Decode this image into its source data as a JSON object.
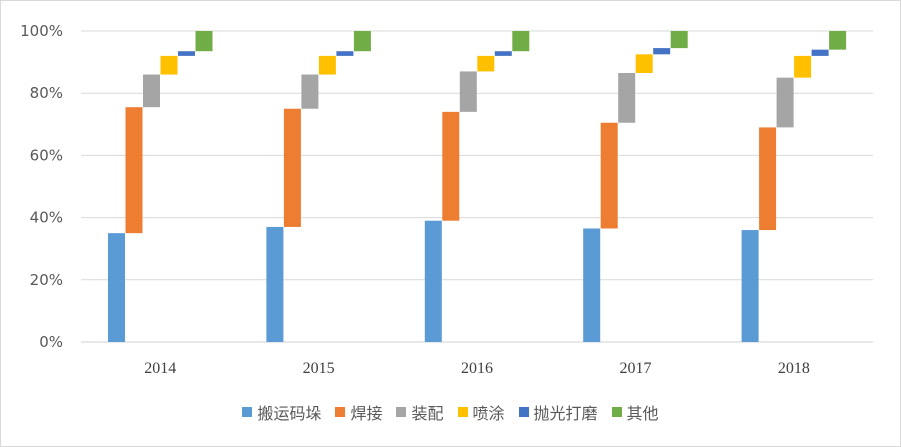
{
  "chart_data": {
    "type": "bar",
    "subtype": "stacked-waterfall",
    "title": "",
    "xlabel": "",
    "ylabel": "",
    "ylim": [
      0,
      100
    ],
    "yticks": [
      "0%",
      "20%",
      "40%",
      "60%",
      "80%",
      "100%"
    ],
    "categories": [
      "2014",
      "2015",
      "2016",
      "2017",
      "2018"
    ],
    "grid": true,
    "legend_position": "bottom",
    "series": [
      {
        "name": "搬运码垛",
        "color": "#5b9bd5",
        "values": [
          35,
          37,
          39,
          36.5,
          36
        ]
      },
      {
        "name": "焊接",
        "color": "#ed7d31",
        "values": [
          40.5,
          38,
          35,
          34,
          33
        ]
      },
      {
        "name": "装配",
        "color": "#a5a5a5",
        "values": [
          10.5,
          11,
          13,
          16,
          16
        ]
      },
      {
        "name": "喷涂",
        "color": "#ffc000",
        "values": [
          6,
          6,
          5,
          6,
          7
        ]
      },
      {
        "name": "抛光打磨",
        "color": "#4472c4",
        "values": [
          1.5,
          1.5,
          1.5,
          2,
          2
        ]
      },
      {
        "name": "其他",
        "color": "#70ad47",
        "values": [
          6.5,
          6.5,
          6.5,
          5.5,
          6
        ]
      }
    ]
  }
}
